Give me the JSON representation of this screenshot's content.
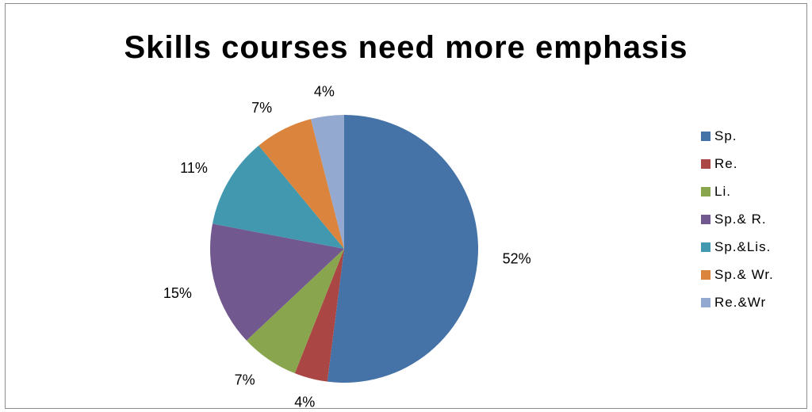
{
  "chart_data": {
    "type": "pie",
    "title": "Skills courses need more emphasis",
    "categories": [
      "Sp.",
      "Re.",
      "Li.",
      "Sp.& R.",
      "Sp.&Lis.",
      "Sp.& Wr.",
      "Re.&Wr"
    ],
    "values": [
      52,
      4,
      7,
      15,
      11,
      7,
      4
    ],
    "data_labels": [
      "52%",
      "4%",
      "7%",
      "15%",
      "11%",
      "7%",
      "4%"
    ],
    "colors": [
      "#4572A7",
      "#AA4643",
      "#89A54E",
      "#71588F",
      "#4198AF",
      "#DB843D",
      "#93A9CF"
    ],
    "legend_position": "right"
  }
}
